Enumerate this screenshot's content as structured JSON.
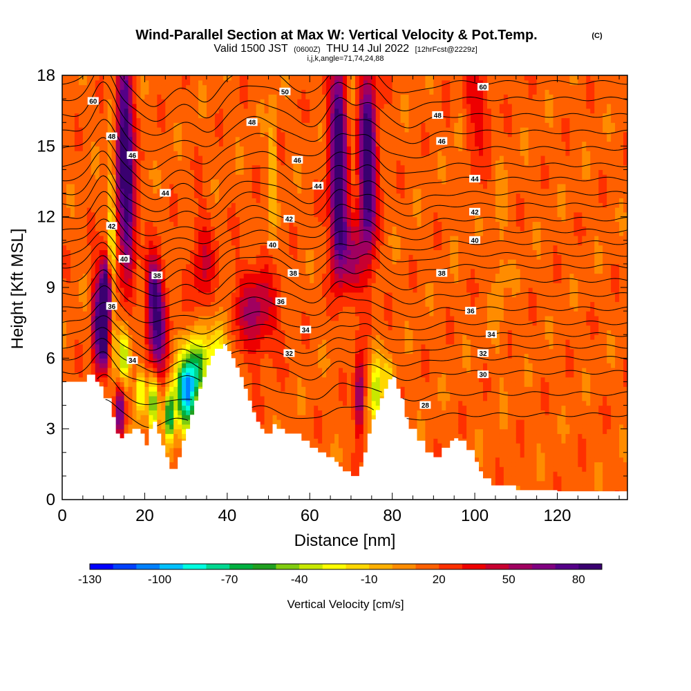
{
  "title": {
    "main": "Wind-Parallel Section at Max W: Vertical Velocity & Pot.Temp.",
    "copyright": "(C)",
    "valid_prefix": "Valid 1500 JST",
    "valid_zulu": "(0600Z)",
    "valid_date": "THU 14 Jul 2022",
    "forecast": "[12hrFcst@2229z]",
    "indices": "i,j,k,angle=71,74,24,88"
  },
  "colors": {
    "terrain": "#ffffff",
    "contour_line": "#000000",
    "plot_border": "#000000"
  },
  "chart_data": {
    "type": "heatmap",
    "xlabel": "Distance [nm]",
    "ylabel": "Height [Kft MSL]",
    "xlim": [
      0,
      137
    ],
    "ylim": [
      0,
      18
    ],
    "x_ticks": [
      0,
      20,
      40,
      60,
      80,
      100,
      120
    ],
    "y_ticks": [
      0,
      3,
      6,
      9,
      12,
      15,
      18
    ],
    "colorbar": {
      "title": "Vertical Velocity [cm/s]",
      "min": -130,
      "max": 90,
      "step": 10,
      "tick_values": [
        -130,
        -100,
        -70,
        -40,
        -10,
        20,
        50,
        80
      ],
      "tick_labels": [
        "-130",
        "-100",
        "-70",
        "-40",
        "-10",
        "20",
        "50",
        "80"
      ],
      "colors": [
        "#0000ff",
        "#0040ff",
        "#0080ff",
        "#00c0ff",
        "#00ffe0",
        "#00d890",
        "#00b040",
        "#20a020",
        "#80cc10",
        "#c8e800",
        "#ffff00",
        "#ffd700",
        "#ffb000",
        "#ff8c00",
        "#ff6000",
        "#ff3000",
        "#ee0000",
        "#c80030",
        "#a00060",
        "#800080",
        "#550088",
        "#3a0070"
      ]
    },
    "terrain_profile": {
      "x": [
        0,
        4,
        6,
        8,
        9,
        10,
        12,
        13,
        14,
        15,
        17,
        19,
        20,
        21,
        22,
        23,
        24,
        25,
        26,
        27,
        28,
        29,
        30,
        31,
        32,
        33,
        34,
        35,
        36,
        37,
        38,
        39,
        40,
        41,
        42,
        43,
        44,
        45,
        46,
        47,
        48,
        49,
        50,
        51,
        52,
        54,
        56,
        58,
        60,
        62,
        64,
        66,
        67,
        68,
        70,
        71,
        72,
        73,
        74,
        75,
        76,
        77,
        78,
        79,
        80,
        81,
        82,
        83,
        84,
        86,
        88,
        90,
        92,
        94,
        95,
        96,
        98,
        100,
        101,
        102,
        104,
        110,
        120,
        130,
        137
      ],
      "height": [
        5.0,
        5.0,
        5.3,
        5.0,
        4.8,
        4.3,
        3.5,
        2.8,
        2.6,
        2.8,
        3.0,
        2.8,
        2.3,
        3.0,
        3.3,
        2.8,
        2.3,
        1.8,
        1.3,
        1.3,
        1.8,
        2.5,
        3.0,
        3.6,
        4.2,
        4.7,
        5.2,
        5.7,
        6.1,
        6.4,
        6.4,
        6.6,
        6.3,
        6.0,
        5.6,
        5.2,
        4.7,
        4.2,
        3.7,
        3.3,
        3.0,
        2.8,
        2.8,
        3.2,
        3.0,
        2.8,
        2.8,
        2.5,
        2.2,
        2.0,
        1.8,
        1.6,
        1.4,
        1.2,
        1.0,
        1.0,
        1.4,
        2.0,
        2.8,
        3.4,
        3.8,
        4.3,
        4.7,
        5.1,
        5.2,
        4.7,
        4.3,
        3.5,
        3.0,
        2.5,
        2.0,
        1.8,
        2.2,
        2.5,
        2.6,
        2.5,
        2.1,
        1.6,
        1.2,
        0.9,
        0.6,
        0.4,
        0.35,
        0.35,
        0.35,
        0.35
      ]
    },
    "w_background": 15,
    "w_features": [
      {
        "x": 10,
        "h": 7.2,
        "sx": 1.0,
        "sy": 1.8,
        "v": 90
      },
      {
        "x": 11,
        "h": 8.8,
        "sx": 1.0,
        "sy": 1.0,
        "v": 65
      },
      {
        "x": 8,
        "h": 7.5,
        "sx": 0.6,
        "sy": 1.5,
        "v": 45
      },
      {
        "x": 15,
        "h": 15.8,
        "sx": 1.4,
        "sy": 2.6,
        "v": 70
      },
      {
        "x": 16,
        "h": 12.2,
        "sx": 1.3,
        "sy": 2.0,
        "v": 55
      },
      {
        "x": 14,
        "h": 3.8,
        "sx": 0.8,
        "sy": 0.8,
        "v": 60
      },
      {
        "x": 23,
        "h": 7.2,
        "sx": 1.6,
        "sy": 1.6,
        "v": 60
      },
      {
        "x": 22,
        "h": 9.0,
        "sx": 1.2,
        "sy": 1.0,
        "v": 40
      },
      {
        "x": 47,
        "h": 8.0,
        "sx": 3.5,
        "sy": 1.3,
        "v": 38
      },
      {
        "x": 67,
        "h": 15.2,
        "sx": 1.5,
        "sy": 2.6,
        "v": 80
      },
      {
        "x": 67,
        "h": 11.5,
        "sx": 1.4,
        "sy": 1.6,
        "v": 45
      },
      {
        "x": 74,
        "h": 14.2,
        "sx": 1.5,
        "sy": 2.8,
        "v": 85
      },
      {
        "x": 72,
        "h": 4.3,
        "sx": 0.8,
        "sy": 1.2,
        "v": 55
      },
      {
        "x": 70,
        "h": 10.2,
        "sx": 2.0,
        "sy": 1.2,
        "v": 30
      },
      {
        "x": 34,
        "h": 10.0,
        "sx": 2.0,
        "sy": 1.5,
        "v": 25
      },
      {
        "x": 100,
        "h": 17.0,
        "sx": 3.0,
        "sy": 2.0,
        "v": 20
      },
      {
        "x": 12,
        "h": 10.5,
        "sx": 0.6,
        "sy": 4.0,
        "v": -45
      },
      {
        "x": 15,
        "h": 6.0,
        "sx": 1.0,
        "sy": 0.8,
        "v": -55
      },
      {
        "x": 10,
        "h": 4.8,
        "sx": 0.6,
        "sy": 0.7,
        "v": -40
      },
      {
        "x": 19,
        "h": 4.6,
        "sx": 0.8,
        "sy": 0.7,
        "v": -60
      },
      {
        "x": 22,
        "h": 4.2,
        "sx": 0.9,
        "sy": 0.9,
        "v": -70
      },
      {
        "x": 26,
        "h": 3.5,
        "sx": 0.8,
        "sy": 0.8,
        "v": -90
      },
      {
        "x": 30,
        "h": 4.5,
        "sx": 1.8,
        "sy": 1.1,
        "v": -110
      },
      {
        "x": 33,
        "h": 5.6,
        "sx": 1.8,
        "sy": 1.0,
        "v": -70
      },
      {
        "x": 38,
        "h": 6.2,
        "sx": 1.5,
        "sy": 1.0,
        "v": -50
      },
      {
        "x": 51,
        "h": 14.0,
        "sx": 0.5,
        "sy": 2.0,
        "v": -35
      },
      {
        "x": 76,
        "h": 4.5,
        "sx": 1.0,
        "sy": 1.2,
        "v": -55
      },
      {
        "x": 79,
        "h": 5.2,
        "sx": 1.0,
        "sy": 0.6,
        "v": -30
      },
      {
        "x": 70,
        "h": 17.0,
        "sx": 1.2,
        "sy": 2.0,
        "v": -12
      },
      {
        "x": 96,
        "h": 16.5,
        "sx": 1.0,
        "sy": 3.0,
        "v": -12
      },
      {
        "x": 106,
        "h": 10.0,
        "sx": 1.2,
        "sy": 3.0,
        "v": -10
      }
    ],
    "theta_contours": {
      "levels_c": [
        28,
        29,
        30,
        31,
        32,
        33,
        34,
        35,
        36,
        37,
        38,
        39,
        40,
        41,
        42,
        43,
        44,
        45,
        46,
        47,
        48,
        49,
        50,
        51
      ],
      "base_heights": [
        3.6,
        4.5,
        5.4,
        6.0,
        6.5,
        7.0,
        7.5,
        8.1,
        8.7,
        9.3,
        9.9,
        10.4,
        10.9,
        11.4,
        11.9,
        12.5,
        13.0,
        13.6,
        14.2,
        14.9,
        15.6,
        16.3,
        17.0,
        17.7
      ],
      "perturbations": [
        {
          "x": 10,
          "s": 2.5,
          "a": 0.9
        },
        {
          "x": 22,
          "s": 4.0,
          "a": -0.6
        },
        {
          "x": 35,
          "s": 3.0,
          "a": -0.5
        },
        {
          "x": 47,
          "s": 5.0,
          "a": 0.4
        },
        {
          "x": 60,
          "s": 4.0,
          "a": -0.3
        },
        {
          "x": 67,
          "s": 2.5,
          "a": 0.5
        },
        {
          "x": 74,
          "s": 2.5,
          "a": 0.4
        },
        {
          "x": 84,
          "s": 4.0,
          "a": -0.3
        }
      ],
      "labels": [
        {
          "text": "60",
          "x": 7.5,
          "h": 16.9
        },
        {
          "text": "48",
          "x": 12,
          "h": 15.4
        },
        {
          "text": "46",
          "x": 17,
          "h": 14.6
        },
        {
          "text": "44",
          "x": 25,
          "h": 13.0
        },
        {
          "text": "42",
          "x": 12,
          "h": 11.6
        },
        {
          "text": "40",
          "x": 15,
          "h": 10.2
        },
        {
          "text": "38",
          "x": 23,
          "h": 9.5
        },
        {
          "text": "36",
          "x": 12,
          "h": 8.2
        },
        {
          "text": "34",
          "x": 17,
          "h": 5.9
        },
        {
          "text": "50",
          "x": 54,
          "h": 17.3
        },
        {
          "text": "48",
          "x": 46,
          "h": 16.0
        },
        {
          "text": "46",
          "x": 57,
          "h": 14.4
        },
        {
          "text": "44",
          "x": 62,
          "h": 13.3
        },
        {
          "text": "42",
          "x": 55,
          "h": 11.9
        },
        {
          "text": "40",
          "x": 51,
          "h": 10.8
        },
        {
          "text": "38",
          "x": 56,
          "h": 9.6
        },
        {
          "text": "36",
          "x": 53,
          "h": 8.4
        },
        {
          "text": "34",
          "x": 59,
          "h": 7.2
        },
        {
          "text": "32",
          "x": 55,
          "h": 6.2
        },
        {
          "text": "60",
          "x": 102,
          "h": 17.5
        },
        {
          "text": "48",
          "x": 91,
          "h": 16.3
        },
        {
          "text": "46",
          "x": 92,
          "h": 15.2
        },
        {
          "text": "44",
          "x": 100,
          "h": 13.6
        },
        {
          "text": "42",
          "x": 100,
          "h": 12.2
        },
        {
          "text": "40",
          "x": 100,
          "h": 11.0
        },
        {
          "text": "38",
          "x": 92,
          "h": 9.6
        },
        {
          "text": "36",
          "x": 99,
          "h": 8.0
        },
        {
          "text": "34",
          "x": 104,
          "h": 7.0
        },
        {
          "text": "32",
          "x": 102,
          "h": 6.2
        },
        {
          "text": "30",
          "x": 102,
          "h": 5.3
        },
        {
          "text": "28",
          "x": 88,
          "h": 4.0
        }
      ]
    }
  }
}
